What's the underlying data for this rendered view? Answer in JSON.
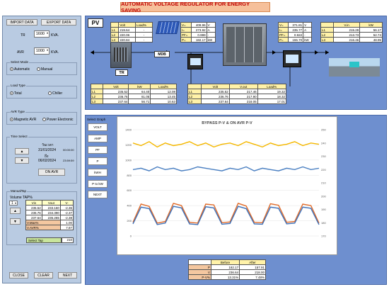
{
  "title": "AUTOMATIC VOLTAGE REGULATOR FOR ENERGY SAVING",
  "left": {
    "import_label": "IMPORT DATA",
    "export_label": "EXPORT DATA",
    "tr_label": "TR",
    "tr_value": "1600",
    "tr_unit": "KVA.",
    "avr_label": "AVR",
    "avr_value": "1000",
    "avr_unit": "KVA.",
    "select_mode": {
      "title": "Select Mode",
      "opt1": "Automatic",
      "opt2": "Manual"
    },
    "load_type": {
      "title": "Load Type",
      "opt1": "Total",
      "opt2": "Chiller"
    },
    "avr_type": {
      "title": "AVR Type",
      "opt1": "Magnetic AVR",
      "opt2": "Power Electronic"
    },
    "time_select": {
      "title": "Time Select",
      "thai_range": "วันเวลา",
      "start_date": "31/01/2024",
      "start_time": "00:00:00",
      "to": "ถึง",
      "end_date": "06/02/2024",
      "end_time": "23:59:59",
      "on_avr_label": "ON AVR"
    },
    "manual_tap": {
      "title": "ManualTap",
      "volume_label": "Volume TAP%",
      "volume_value": "1",
      "headers": [
        "Vin",
        "Vout",
        "V-"
      ],
      "rows": [
        [
          "235.52",
          "233.160",
          "-2.36"
        ],
        [
          "236.76",
          "234.390",
          "-2.37"
        ],
        [
          "237.64",
          "235.265",
          "-2.38"
        ]
      ],
      "vmax_label": "V.Max%",
      "vmax_value": "1.00",
      "vavr_label": "V.AVR%",
      "vavr_value": "7.87",
      "select_tap_label": "Select Tap",
      "select_tap_value": "210"
    },
    "close_label": "CLOSE",
    "clear_label": "CLEAR",
    "next_label": "NEXT"
  },
  "pv": {
    "label": "PV",
    "tr_label": "TR",
    "mdb_label": "MDB",
    "table1_headers": [
      "Volt",
      "Load%"
    ],
    "table1_rows": [
      [
        "L1",
        "219.64",
        "-"
      ],
      [
        "L2",
        "220.06",
        "-"
      ],
      [
        "L3",
        "220.84",
        "-"
      ]
    ],
    "table2_rows": [
      [
        "V=",
        "409.96",
        "V"
      ],
      [
        "I=",
        "273.92",
        "A"
      ],
      [
        "PF=",
        "0.999",
        "-"
      ],
      [
        "P=",
        "182.17",
        "kW"
      ]
    ],
    "table3_rows": [
      [
        "V=",
        "371.81",
        "V"
      ],
      [
        "I=",
        "235.77",
        "A"
      ],
      [
        "PF=",
        "0.922",
        "-"
      ],
      [
        "P=",
        "155.70",
        "kW"
      ]
    ],
    "table4_headers": [
      "V.in",
      "kW"
    ],
    "table4_rows": [
      [
        "L1",
        "215.29",
        "56.17"
      ],
      [
        "L2",
        "213.73",
        "52.74"
      ],
      [
        "L3",
        "216.46",
        "48.95"
      ]
    ],
    "table5_headers": [
      "Volt",
      "kW",
      "Load%"
    ],
    "table5_rows": [
      [
        "L1",
        "235.52",
        "64.40",
        "12.08"
      ],
      [
        "L2",
        "236.76",
        "61.05",
        "13.45"
      ],
      [
        "L3",
        "237.64",
        "56.71",
        "10.63"
      ]
    ],
    "table6_headers": [
      "Volt",
      "V.out",
      "Load%"
    ],
    "table6_rows": [
      [
        "L1",
        "235.52",
        "217.46",
        "19.32"
      ],
      [
        "L2",
        "236.76",
        "217.90",
        "18.32"
      ],
      [
        "L3",
        "237.64",
        "218.05",
        "17.01"
      ]
    ]
  },
  "graphs": {
    "title": "Select Graph",
    "buttons": [
      "VOLT",
      "AMP",
      "PF",
      "P",
      "kWH",
      "P to kW",
      "NEXT"
    ]
  },
  "chart_data": {
    "type": "line",
    "title": "BYPASS P-V & ON AVR P-V",
    "y_left_ticks": [
      "0",
      "200",
      "400",
      "600",
      "800",
      "1000",
      "1200",
      "1400"
    ],
    "y_right_ticks": [
      "170",
      "180",
      "190",
      "200",
      "210",
      "220",
      "230",
      "240",
      "250"
    ],
    "ylim_left": [
      0,
      1400
    ],
    "ylim_right": [
      170,
      250
    ],
    "series": [
      {
        "color": "#f5b800",
        "axis": "right",
        "values": [
          240,
          238,
          241,
          237,
          240,
          238,
          239,
          241,
          238,
          240,
          237,
          239,
          240,
          238,
          241,
          239,
          237,
          240,
          238,
          239,
          241,
          238,
          240,
          239
        ]
      },
      {
        "color": "#4a7fc1",
        "axis": "right",
        "values": [
          220,
          221,
          219,
          222,
          220,
          221,
          219,
          220,
          222,
          221,
          220,
          219,
          221,
          220,
          222,
          219,
          221,
          220,
          219,
          221,
          220,
          222,
          220,
          221
        ]
      },
      {
        "color": "#e06a28",
        "axis": "left",
        "values": [
          180,
          420,
          390,
          170,
          190,
          430,
          400,
          180,
          170,
          420,
          410,
          175,
          185,
          430,
          395,
          180,
          175,
          425,
          405,
          180,
          190,
          420,
          400,
          170
        ]
      },
      {
        "color": "#3b6fb8",
        "axis": "left",
        "values": [
          160,
          380,
          360,
          150,
          170,
          390,
          370,
          160,
          150,
          385,
          370,
          155,
          165,
          390,
          360,
          160,
          155,
          380,
          365,
          160,
          170,
          380,
          365,
          150
        ]
      }
    ],
    "grid": true
  },
  "summary": {
    "headers": [
      "Before",
      "After"
    ],
    "rows": [
      [
        "P",
        "182.17",
        "157.91"
      ],
      [
        "V",
        "236.64",
        "218.00"
      ],
      [
        "P-V%",
        "13.31%",
        "7.48%"
      ]
    ]
  },
  "colors": {
    "panel": "#b9cbe2",
    "blue_area": "#6e8fcf",
    "title_bg": "#f6c09a",
    "yellow": "#fff2a8",
    "green": "#c9e59c"
  }
}
